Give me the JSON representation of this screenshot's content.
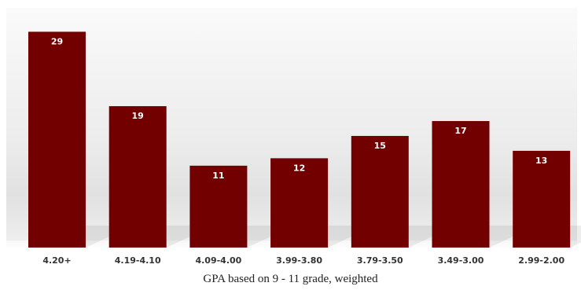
{
  "chart_data": {
    "type": "bar",
    "categories": [
      "4.20+",
      "4.19-4.10",
      "4.09-4.00",
      "3.99-3.80",
      "3.79-3.50",
      "3.49-3.00",
      "2.99-2.00"
    ],
    "values": [
      29,
      19,
      11,
      12,
      15,
      17,
      13
    ],
    "title": "",
    "xlabel": "GPA based on 9 - 11 grade, weighted",
    "ylabel": "",
    "ylim": [
      0,
      32
    ],
    "grid": false,
    "legend": "none",
    "data_labels": true,
    "bar_color": "#730000"
  }
}
